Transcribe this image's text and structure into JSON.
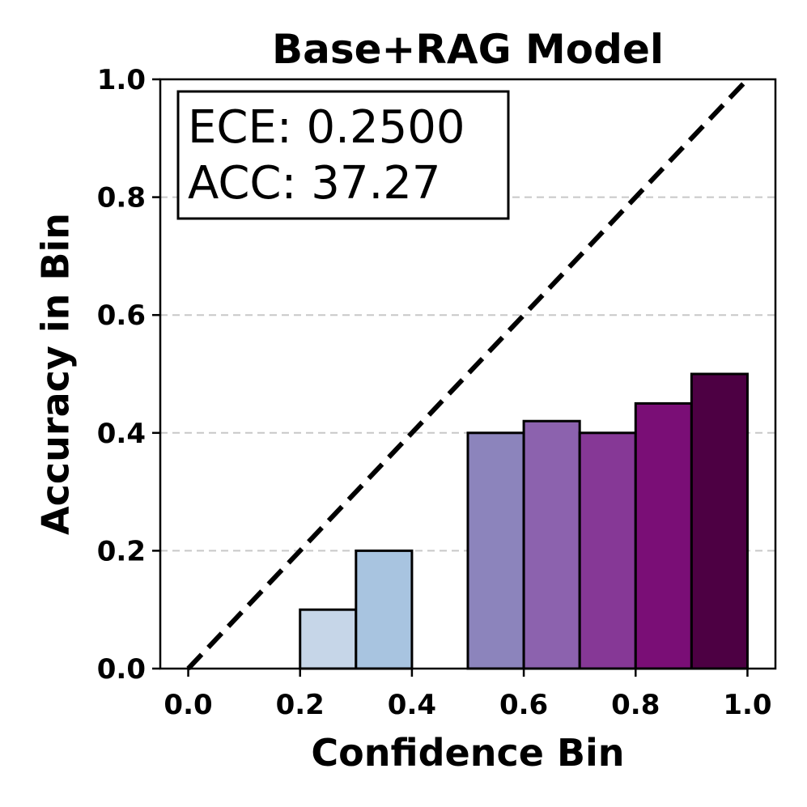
{
  "chart_data": {
    "type": "bar",
    "title": "Base+RAG Model",
    "xlabel": "Confidence Bin",
    "ylabel": "Accuracy in Bin",
    "xlim": [
      -0.05,
      1.05
    ],
    "ylim": [
      0.0,
      1.0
    ],
    "xticks": [
      "0.0",
      "0.2",
      "0.4",
      "0.6",
      "0.8",
      "1.0"
    ],
    "yticks": [
      "0.0",
      "0.2",
      "0.4",
      "0.6",
      "0.8",
      "1.0"
    ],
    "grid": "horizontal dashed",
    "bin_width": 0.1,
    "bins": [
      {
        "left": 0.2,
        "value": 0.1,
        "color": "#c6d6e8"
      },
      {
        "left": 0.3,
        "value": 0.2,
        "color": "#a8c4e0"
      },
      {
        "left": 0.5,
        "value": 0.4,
        "color": "#8c84bc"
      },
      {
        "left": 0.6,
        "value": 0.42,
        "color": "#8c62ae"
      },
      {
        "left": 0.7,
        "value": 0.4,
        "color": "#863896"
      },
      {
        "left": 0.8,
        "value": 0.45,
        "color": "#7a0e76"
      },
      {
        "left": 0.9,
        "value": 0.5,
        "color": "#4d0043"
      }
    ],
    "diagonal": {
      "from": [
        0,
        0
      ],
      "to": [
        1,
        1
      ],
      "style": "dashed"
    },
    "annotation": {
      "line1": "ECE: 0.2500",
      "line2": "ACC: 37.27"
    }
  }
}
